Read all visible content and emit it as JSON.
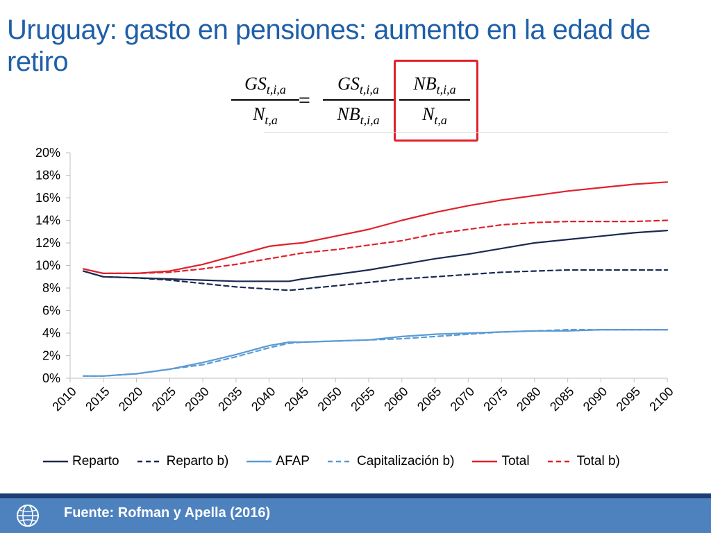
{
  "header": {
    "title": "Uruguay: gasto en pensiones: aumento en la edad de retiro"
  },
  "formula": {
    "lhs_num": "GS",
    "lhs_num_sub": "t,i,a",
    "lhs_den": "N",
    "lhs_den_sub": "t,a",
    "equals": "=",
    "r1_num": "GS",
    "r1_num_sub": "t,i,a",
    "r1_den": "NB",
    "r1_den_sub": "t,i,a",
    "r2_num": "NB",
    "r2_num_sub": "t,i,a",
    "r2_den": "N",
    "r2_den_sub": "t,a",
    "highlight_color": "#e0212b"
  },
  "chart_data": {
    "type": "line",
    "x": [
      2012,
      2015,
      2020,
      2025,
      2030,
      2035,
      2040,
      2043,
      2045,
      2050,
      2055,
      2060,
      2065,
      2070,
      2075,
      2080,
      2085,
      2090,
      2095,
      2100
    ],
    "x_ticks": [
      "2010",
      "2015",
      "2020",
      "2025",
      "2030",
      "2035",
      "2040",
      "2045",
      "2050",
      "2055",
      "2060",
      "2065",
      "2070",
      "2075",
      "2080",
      "2085",
      "2090",
      "2095",
      "2100"
    ],
    "y_ticks": [
      "0%",
      "2%",
      "4%",
      "6%",
      "8%",
      "10%",
      "12%",
      "14%",
      "16%",
      "18%",
      "20%"
    ],
    "xlim": [
      2010,
      2100
    ],
    "ylim": [
      0,
      20
    ],
    "grid": false,
    "legend_position": "bottom",
    "series": [
      {
        "name": "Reparto",
        "color": "#1a2a50",
        "dashed": false,
        "values": [
          9.5,
          9.0,
          8.9,
          8.8,
          8.7,
          8.6,
          8.6,
          8.6,
          8.8,
          9.2,
          9.6,
          10.1,
          10.6,
          11.0,
          11.5,
          12.0,
          12.3,
          12.6,
          12.9,
          13.1
        ]
      },
      {
        "name": "Reparto b)",
        "color": "#1a2a50",
        "dashed": true,
        "values": [
          9.5,
          9.0,
          8.9,
          8.7,
          8.4,
          8.1,
          7.9,
          7.8,
          7.9,
          8.2,
          8.5,
          8.8,
          9.0,
          9.2,
          9.4,
          9.5,
          9.6,
          9.6,
          9.6,
          9.6
        ]
      },
      {
        "name": "AFAP",
        "color": "#5b9bd5",
        "dashed": false,
        "values": [
          0.2,
          0.2,
          0.4,
          0.8,
          1.4,
          2.1,
          2.9,
          3.2,
          3.2,
          3.3,
          3.4,
          3.7,
          3.9,
          4.0,
          4.1,
          4.2,
          4.2,
          4.3,
          4.3,
          4.3
        ]
      },
      {
        "name": "Capitalización b)",
        "color": "#5b9bd5",
        "dashed": true,
        "values": [
          0.2,
          0.2,
          0.4,
          0.8,
          1.2,
          1.9,
          2.7,
          3.1,
          3.2,
          3.3,
          3.4,
          3.5,
          3.7,
          3.9,
          4.1,
          4.2,
          4.3,
          4.3,
          4.3,
          4.3
        ]
      },
      {
        "name": "Total",
        "color": "#e0212b",
        "dashed": false,
        "values": [
          9.7,
          9.3,
          9.3,
          9.5,
          10.1,
          10.9,
          11.7,
          11.9,
          12.0,
          12.6,
          13.2,
          14.0,
          14.7,
          15.3,
          15.8,
          16.2,
          16.6,
          16.9,
          17.2,
          17.4
        ]
      },
      {
        "name": "Total b)",
        "color": "#e0212b",
        "dashed": true,
        "values": [
          9.7,
          9.3,
          9.3,
          9.4,
          9.7,
          10.1,
          10.6,
          10.9,
          11.1,
          11.4,
          11.8,
          12.2,
          12.8,
          13.2,
          13.6,
          13.8,
          13.9,
          13.9,
          13.9,
          14.0
        ]
      }
    ]
  },
  "footer": {
    "source": "Fuente: Rofman y Apella (2016)"
  }
}
